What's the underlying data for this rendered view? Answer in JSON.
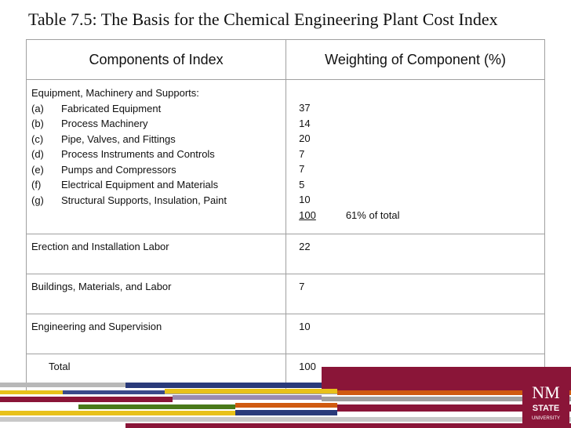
{
  "title": "Table 7.5: The Basis for the Chemical Engineering Plant Cost Index",
  "table": {
    "headers": [
      "Components of Index",
      "Weighting of Component  (%)"
    ],
    "equipment": {
      "heading": "Equipment, Machinery and Supports:",
      "items": [
        {
          "letter": "(a)",
          "label": "Fabricated Equipment",
          "value": "37"
        },
        {
          "letter": "(b)",
          "label": "Process Machinery",
          "value": "14"
        },
        {
          "letter": "(c)",
          "label": "Pipe, Valves, and Fittings",
          "value": "20"
        },
        {
          "letter": "(d)",
          "label": "Process Instruments and Controls",
          "value": "7"
        },
        {
          "letter": "(e)",
          "label": "Pumps and Compressors",
          "value": "7"
        },
        {
          "letter": "(f)",
          "label": "Electrical Equipment and Materials",
          "value": "5"
        },
        {
          "letter": "(g)",
          "label": "Structural Supports, Insulation, Paint",
          "value": "10"
        }
      ],
      "subtotal": "100",
      "subtotal_note": "61% of total"
    },
    "rows": [
      {
        "label": "Erection and Installation Labor",
        "value": "22"
      },
      {
        "label": "Buildings, Materials, and Labor",
        "value": "7"
      },
      {
        "label": "Engineering and Supervision",
        "value": "10"
      },
      {
        "label": "Total",
        "value": "100"
      }
    ]
  },
  "logo": {
    "line1": "NM",
    "line2": "STATE",
    "line3": "UNIVERSITY"
  },
  "colors": {
    "maroon": "#8a1538",
    "navy": "#2a3a7a",
    "yellow": "#e8c11a",
    "green": "#4a7a1a",
    "orange": "#d05a10",
    "grey": "#9a9a9a"
  }
}
